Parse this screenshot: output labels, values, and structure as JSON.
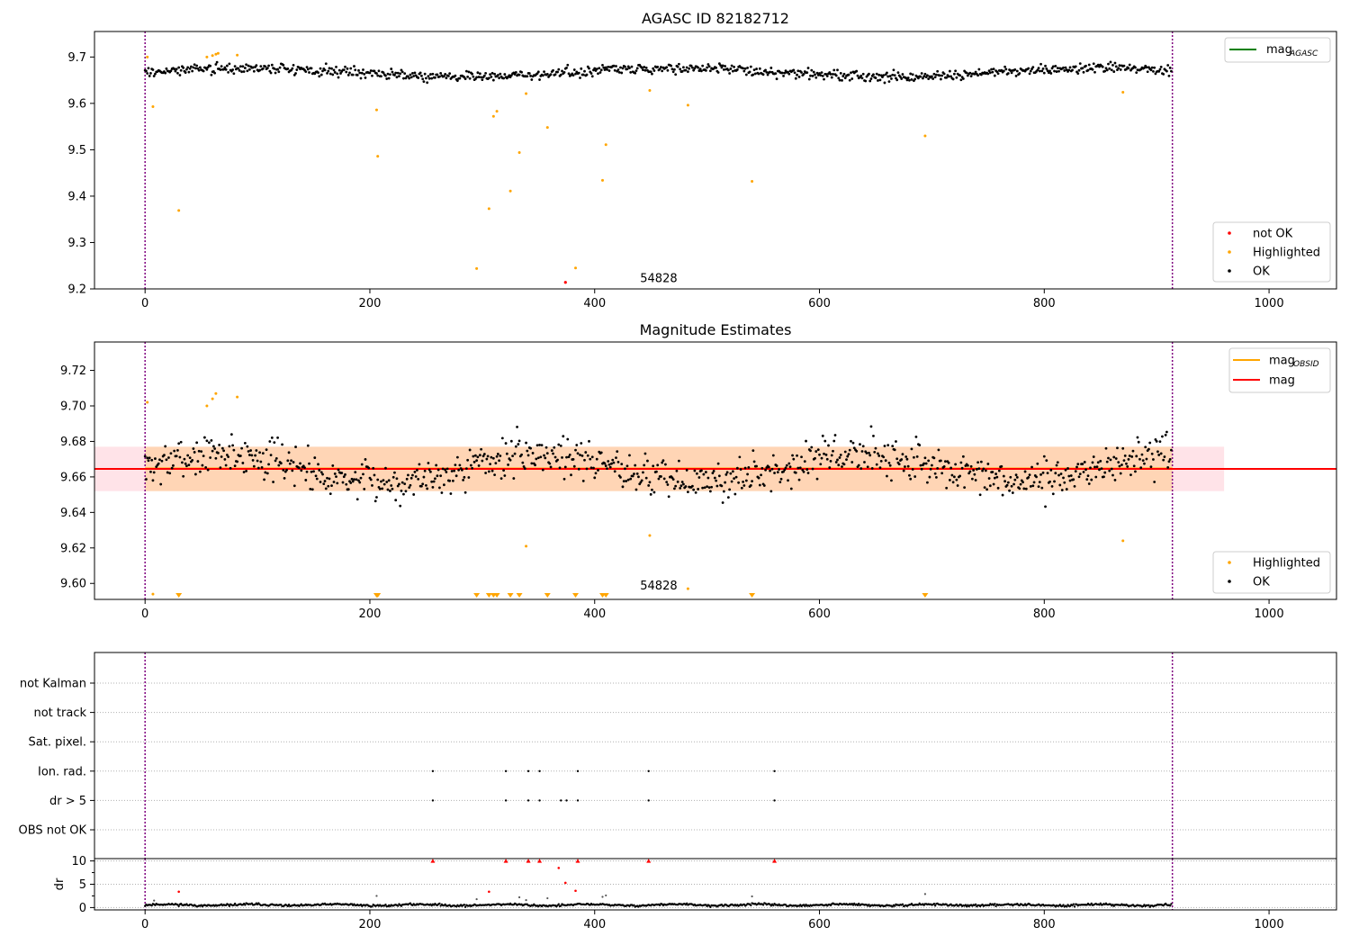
{
  "chart_data": [
    {
      "type": "scatter",
      "title": "AGASC ID 82182712",
      "xlim": [
        -45,
        1060
      ],
      "ylim": [
        9.2,
        9.755
      ],
      "xticks": [
        0,
        200,
        400,
        600,
        800,
        1000
      ],
      "yticks": [
        9.2,
        9.3,
        9.4,
        9.5,
        9.6,
        9.7
      ],
      "ytick_decimals": 1,
      "vlines": [
        0,
        914
      ],
      "annotation": {
        "text": "54828",
        "x": 457,
        "y": 9.215
      },
      "line_legend": [
        {
          "label": "mag",
          "sub": "AGASC",
          "color": "#008000"
        }
      ],
      "scatter_legend": [
        {
          "label": "not OK",
          "color": "#ff0000"
        },
        {
          "label": "Highlighted",
          "color": "#ffa500"
        },
        {
          "label": "OK",
          "color": "#000000"
        }
      ],
      "ok": {
        "n": 914,
        "center": 9.667,
        "amplitude": 0.009,
        "spread": 0.011,
        "seed": 3
      },
      "highlighted": {
        "x": [
          2,
          7,
          30,
          55,
          60,
          63,
          65,
          82,
          206,
          207,
          295,
          306,
          310,
          313,
          325,
          333,
          339,
          358,
          383,
          407,
          410,
          449,
          483,
          540,
          694,
          870
        ],
        "y": [
          9.7,
          9.593,
          9.369,
          9.7,
          9.703,
          9.706,
          9.708,
          9.704,
          9.586,
          9.486,
          9.244,
          9.373,
          9.572,
          9.583,
          9.411,
          9.494,
          9.621,
          9.548,
          9.245,
          9.434,
          9.511,
          9.628,
          9.596,
          9.432,
          9.53,
          9.624
        ]
      },
      "not_ok": {
        "x": [
          374
        ],
        "y": [
          9.214
        ]
      }
    },
    {
      "type": "scatter",
      "title": "Magnitude Estimates",
      "xlim": [
        -45,
        1060
      ],
      "ylim": [
        9.591,
        9.736
      ],
      "xticks": [
        0,
        200,
        400,
        600,
        800,
        1000
      ],
      "yticks": [
        9.6,
        9.62,
        9.64,
        9.66,
        9.68,
        9.7,
        9.72
      ],
      "ytick_decimals": 2,
      "vlines": [
        0,
        914
      ],
      "annotation": {
        "text": "54828",
        "x": 457,
        "y": 9.5965
      },
      "line_legend": [
        {
          "label": "mag",
          "sub": "OBSID",
          "color": "#ffa500"
        },
        {
          "label": "mag",
          "sub": "",
          "color": "#ff0000"
        }
      ],
      "scatter_legend": [
        {
          "label": "Highlighted",
          "color": "#ffa500"
        },
        {
          "label": "OK",
          "color": "#000000"
        }
      ],
      "mag": 9.6645,
      "band": [
        9.652,
        9.677
      ],
      "band_x": [
        -45,
        960
      ],
      "obsid_band_x": [
        0,
        914
      ],
      "ok": {
        "n": 914,
        "center": 9.665,
        "amplitude": 0.008,
        "spread": 0.011,
        "seed": 7
      },
      "highlighted": {
        "x": [
          2,
          7,
          55,
          60,
          63,
          82,
          339,
          449,
          483,
          870
        ],
        "y": [
          9.702,
          9.594,
          9.7,
          9.704,
          9.707,
          9.705,
          9.621,
          9.627,
          9.597,
          9.624
        ]
      },
      "below_range_x": [
        30,
        206,
        207,
        295,
        306,
        310,
        313,
        325,
        333,
        358,
        383,
        407,
        410,
        540,
        694
      ]
    },
    {
      "type": "scatter",
      "title": "",
      "xlim": [
        -45,
        1060
      ],
      "xticks": [
        0,
        200,
        400,
        600,
        800,
        1000
      ],
      "vlines": [
        0,
        914
      ],
      "flag_labels": [
        "not Kalman",
        "not track",
        "Sat. pixel.",
        "Ion. rad.",
        "dr > 5",
        "OBS not OK"
      ],
      "flags": [
        {
          "label": "not Kalman",
          "x": []
        },
        {
          "label": "not track",
          "x": []
        },
        {
          "label": "Sat. pixel.",
          "x": []
        },
        {
          "label": "Ion. rad.",
          "x": [
            256,
            321,
            341,
            351,
            385,
            448,
            560
          ]
        },
        {
          "label": "dr > 5",
          "x": [
            256,
            321,
            341,
            351,
            370,
            375,
            385,
            448,
            560
          ]
        },
        {
          "label": "OBS not OK",
          "x": []
        }
      ],
      "dr": {
        "ylabel": "dr",
        "ylim": [
          -0.5,
          10.5
        ],
        "yticks": [
          0,
          5,
          10
        ],
        "ok": {
          "n": 914,
          "level": 0.55,
          "spread": 0.22,
          "seed": 11
        },
        "outliers_x": [
          30,
          306,
          368,
          374,
          383,
          256,
          321,
          341,
          351,
          385,
          448,
          560
        ],
        "outliers_y": [
          3.4,
          3.4,
          8.5,
          5.3,
          3.6,
          10,
          10,
          10,
          10,
          10,
          10,
          10
        ],
        "gray_x": [
          8,
          206,
          295,
          333,
          339,
          358,
          407,
          410,
          540,
          694
        ],
        "gray_y": [
          1.5,
          2.5,
          1.8,
          2.2,
          1.6,
          2.0,
          2.3,
          2.6,
          2.4,
          2.9
        ]
      }
    }
  ]
}
